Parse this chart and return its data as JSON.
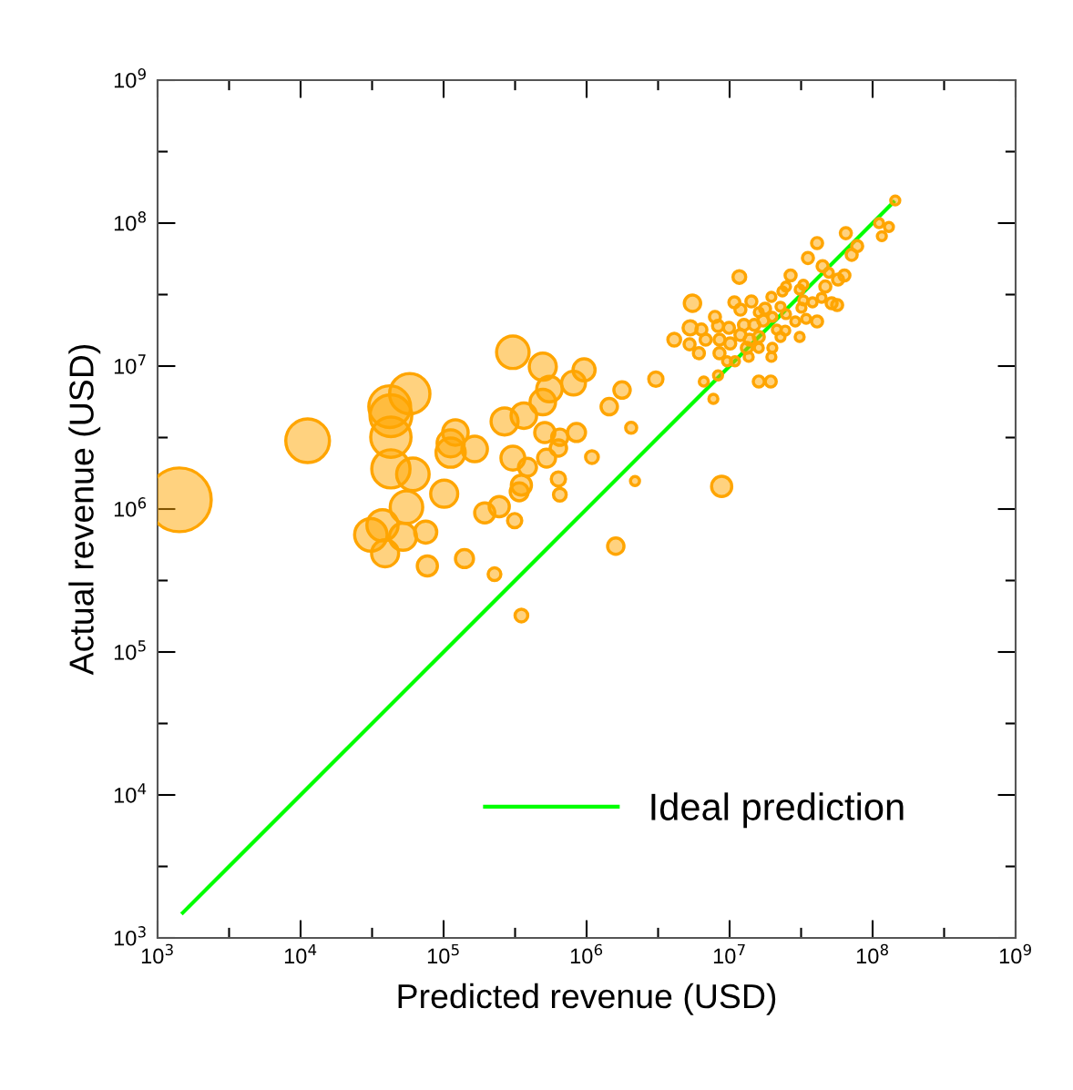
{
  "chart_data": {
    "type": "bubble",
    "xlabel": "Predicted revenue (USD)",
    "ylabel": "Actual revenue (USD)",
    "log": "xy",
    "legend": "bottom right",
    "xlim": [
      1000,
      1000000000
    ],
    "ylim": [
      1000,
      1000000000
    ],
    "xticks": [
      {
        "value": 1000,
        "label": "10$^{3}$"
      },
      {
        "value": 3162,
        "label": null
      },
      {
        "value": 10000,
        "label": "10$^{4}$"
      },
      {
        "value": 31623,
        "label": null
      },
      {
        "value": 100000,
        "label": "10$^{5}$"
      },
      {
        "value": 316228,
        "label": null
      },
      {
        "value": 1000000,
        "label": "10$^{6}$"
      },
      {
        "value": 3162278,
        "label": null
      },
      {
        "value": 10000000,
        "label": "10$^{7}$"
      },
      {
        "value": 31622777,
        "label": null
      },
      {
        "value": 100000000,
        "label": "10$^{8}$"
      },
      {
        "value": 316227766,
        "label": null
      },
      {
        "value": 1000000000,
        "label": "10$^{9}$"
      }
    ],
    "yticks": [
      {
        "value": 1000,
        "label": "10$^{3}$"
      },
      {
        "value": 3162,
        "label": null
      },
      {
        "value": 10000,
        "label": "10$^{4}$"
      },
      {
        "value": 31623,
        "label": null
      },
      {
        "value": 100000,
        "label": "10$^{5}$"
      },
      {
        "value": 316228,
        "label": null
      },
      {
        "value": 1000000,
        "label": "10$^{6}$"
      },
      {
        "value": 3162278,
        "label": null
      },
      {
        "value": 10000000,
        "label": "10$^{7}$"
      },
      {
        "value": 31622777,
        "label": null
      },
      {
        "value": 100000000,
        "label": "10$^{8}$"
      },
      {
        "value": 316227766,
        "label": null
      },
      {
        "value": 1000000000,
        "label": "10$^{9}$"
      }
    ],
    "series": [
      {
        "color": "#ffa500",
        "x": [
          1420,
          11200,
          58000,
          42000,
          42800,
          42800,
          42800,
          61000,
          55000,
          37400,
          31000,
          39000,
          52000,
          75000,
          77000,
          305000,
          494000,
          550000,
          960000,
          810000,
          494000,
          364000,
          267000,
          121000,
          112000,
          112000,
          165000,
          510000,
          650000,
          635000,
          850000,
          525000,
          305000,
          386000,
          350000,
          338000,
          635000,
          650000,
          101000,
          194000,
          245000,
          314000,
          140000,
          227000,
          350000,
          1090000,
          1440000,
          1770000,
          3050000,
          2050000,
          2180000,
          1600000,
          8800000,
          144000000,
          111000000,
          130000000,
          116000000,
          65000000,
          40900000,
          78000000,
          71400000,
          35300000,
          44700000,
          49400000,
          63500000,
          57300000,
          26700000,
          11700000,
          46700000,
          32800000,
          30900000,
          24800000,
          23400000,
          19600000,
          5500000,
          10800000,
          14200000,
          11900000,
          32800000,
          38000000,
          44000000,
          51700000,
          56500000,
          22700000,
          24800000,
          17700000,
          16000000,
          7900000,
          5300000,
          4100000,
          6350000,
          8300000,
          9900000,
          12600000,
          14900000,
          17200000,
          19900000,
          31800000,
          34300000,
          28800000,
          40900000,
          21400000,
          24500000,
          5250000,
          6800000,
          8500000,
          10100000,
          11900000,
          13800000,
          16000000,
          6100000,
          8500000,
          13200000,
          22700000,
          30900000,
          16000000,
          19900000,
          19600000,
          9600000,
          10900000,
          13600000,
          6600000,
          8300000,
          16000000,
          19400000,
          7700000
        ],
        "values": [
          1160000,
          3000000,
          6400000,
          5200000,
          4500000,
          3180000,
          1910000,
          1750000,
          1030000,
          770000,
          660000,
          490000,
          640000,
          690000,
          400000,
          12500000,
          9900000,
          6900000,
          9400000,
          7600000,
          5600000,
          4500000,
          4100000,
          3430000,
          2880000,
          2480000,
          2630000,
          3430000,
          3180000,
          2670000,
          3430000,
          2270000,
          2270000,
          1960000,
          1470000,
          1320000,
          1620000,
          1260000,
          1280000,
          940000,
          1040000,
          830000,
          450000,
          350000,
          180000,
          2310000,
          5200000,
          6800000,
          8100000,
          3700000,
          1570000,
          550000,
          1440000,
          144000000,
          100000000,
          94000000,
          81000000,
          85000000,
          72500000,
          69000000,
          60000000,
          57000000,
          50000000,
          45000000,
          43000000,
          40300000,
          43000000,
          42000000,
          36000000,
          37000000,
          34300000,
          36000000,
          33300000,
          30500000,
          27500000,
          27900000,
          28300000,
          24800000,
          28800000,
          27900000,
          30000000,
          27500000,
          26700000,
          26000000,
          23100000,
          25200000,
          23800000,
          22100000,
          18500000,
          15300000,
          18000000,
          19100000,
          18500000,
          19400000,
          19400000,
          20800000,
          22100000,
          25600000,
          21400000,
          20500000,
          20500000,
          18000000,
          17700000,
          14200000,
          15300000,
          15300000,
          14400000,
          16500000,
          15300000,
          16000000,
          12300000,
          12300000,
          13400000,
          16000000,
          16000000,
          13400000,
          13400000,
          11600000,
          10800000,
          10800000,
          11600000,
          7800000,
          8600000,
          7800000,
          7800000,
          5900000
        ],
        "sizes": [
          1,
          0.47,
          0.4,
          0.43,
          0.43,
          0.4,
          0.36,
          0.26,
          0.26,
          0.24,
          0.26,
          0.18,
          0.18,
          0.12,
          0.1,
          0.26,
          0.18,
          0.16,
          0.12,
          0.14,
          0.16,
          0.16,
          0.18,
          0.16,
          0.18,
          0.21,
          0.16,
          0.1,
          0.066,
          0.066,
          0.08,
          0.08,
          0.14,
          0.08,
          0.1,
          0.08,
          0.05,
          0.04,
          0.18,
          0.1,
          0.1,
          0.05,
          0.08,
          0.04,
          0.04,
          0.04,
          0.066,
          0.066,
          0.05,
          0.03,
          0.02,
          0.066,
          0.1,
          0.02,
          0.02,
          0.02,
          0.02,
          0.03,
          0.03,
          0.03,
          0.03,
          0.03,
          0.03,
          0.02,
          0.03,
          0.03,
          0.03,
          0.04,
          0.03,
          0.02,
          0.02,
          0.02,
          0.02,
          0.02,
          0.066,
          0.03,
          0.03,
          0.03,
          0.02,
          0.02,
          0.02,
          0.03,
          0.03,
          0.02,
          0.02,
          0.03,
          0.02,
          0.03,
          0.05,
          0.04,
          0.03,
          0.03,
          0.03,
          0.03,
          0.03,
          0.03,
          0.02,
          0.02,
          0.02,
          0.02,
          0.03,
          0.02,
          0.02,
          0.03,
          0.03,
          0.03,
          0.03,
          0.03,
          0.03,
          0.03,
          0.03,
          0.03,
          0.03,
          0.02,
          0.02,
          0.02,
          0.02,
          0.02,
          0.02,
          0.02,
          0.02,
          0.02,
          0.02,
          0.03,
          0.03,
          0.02
        ]
      },
      {
        "type": "line",
        "name": "Ideal prediction",
        "color": "#00ff00",
        "line_style": "solid",
        "x": [
          1500,
          140000000
        ],
        "values": [
          1500,
          140000000
        ]
      }
    ]
  }
}
